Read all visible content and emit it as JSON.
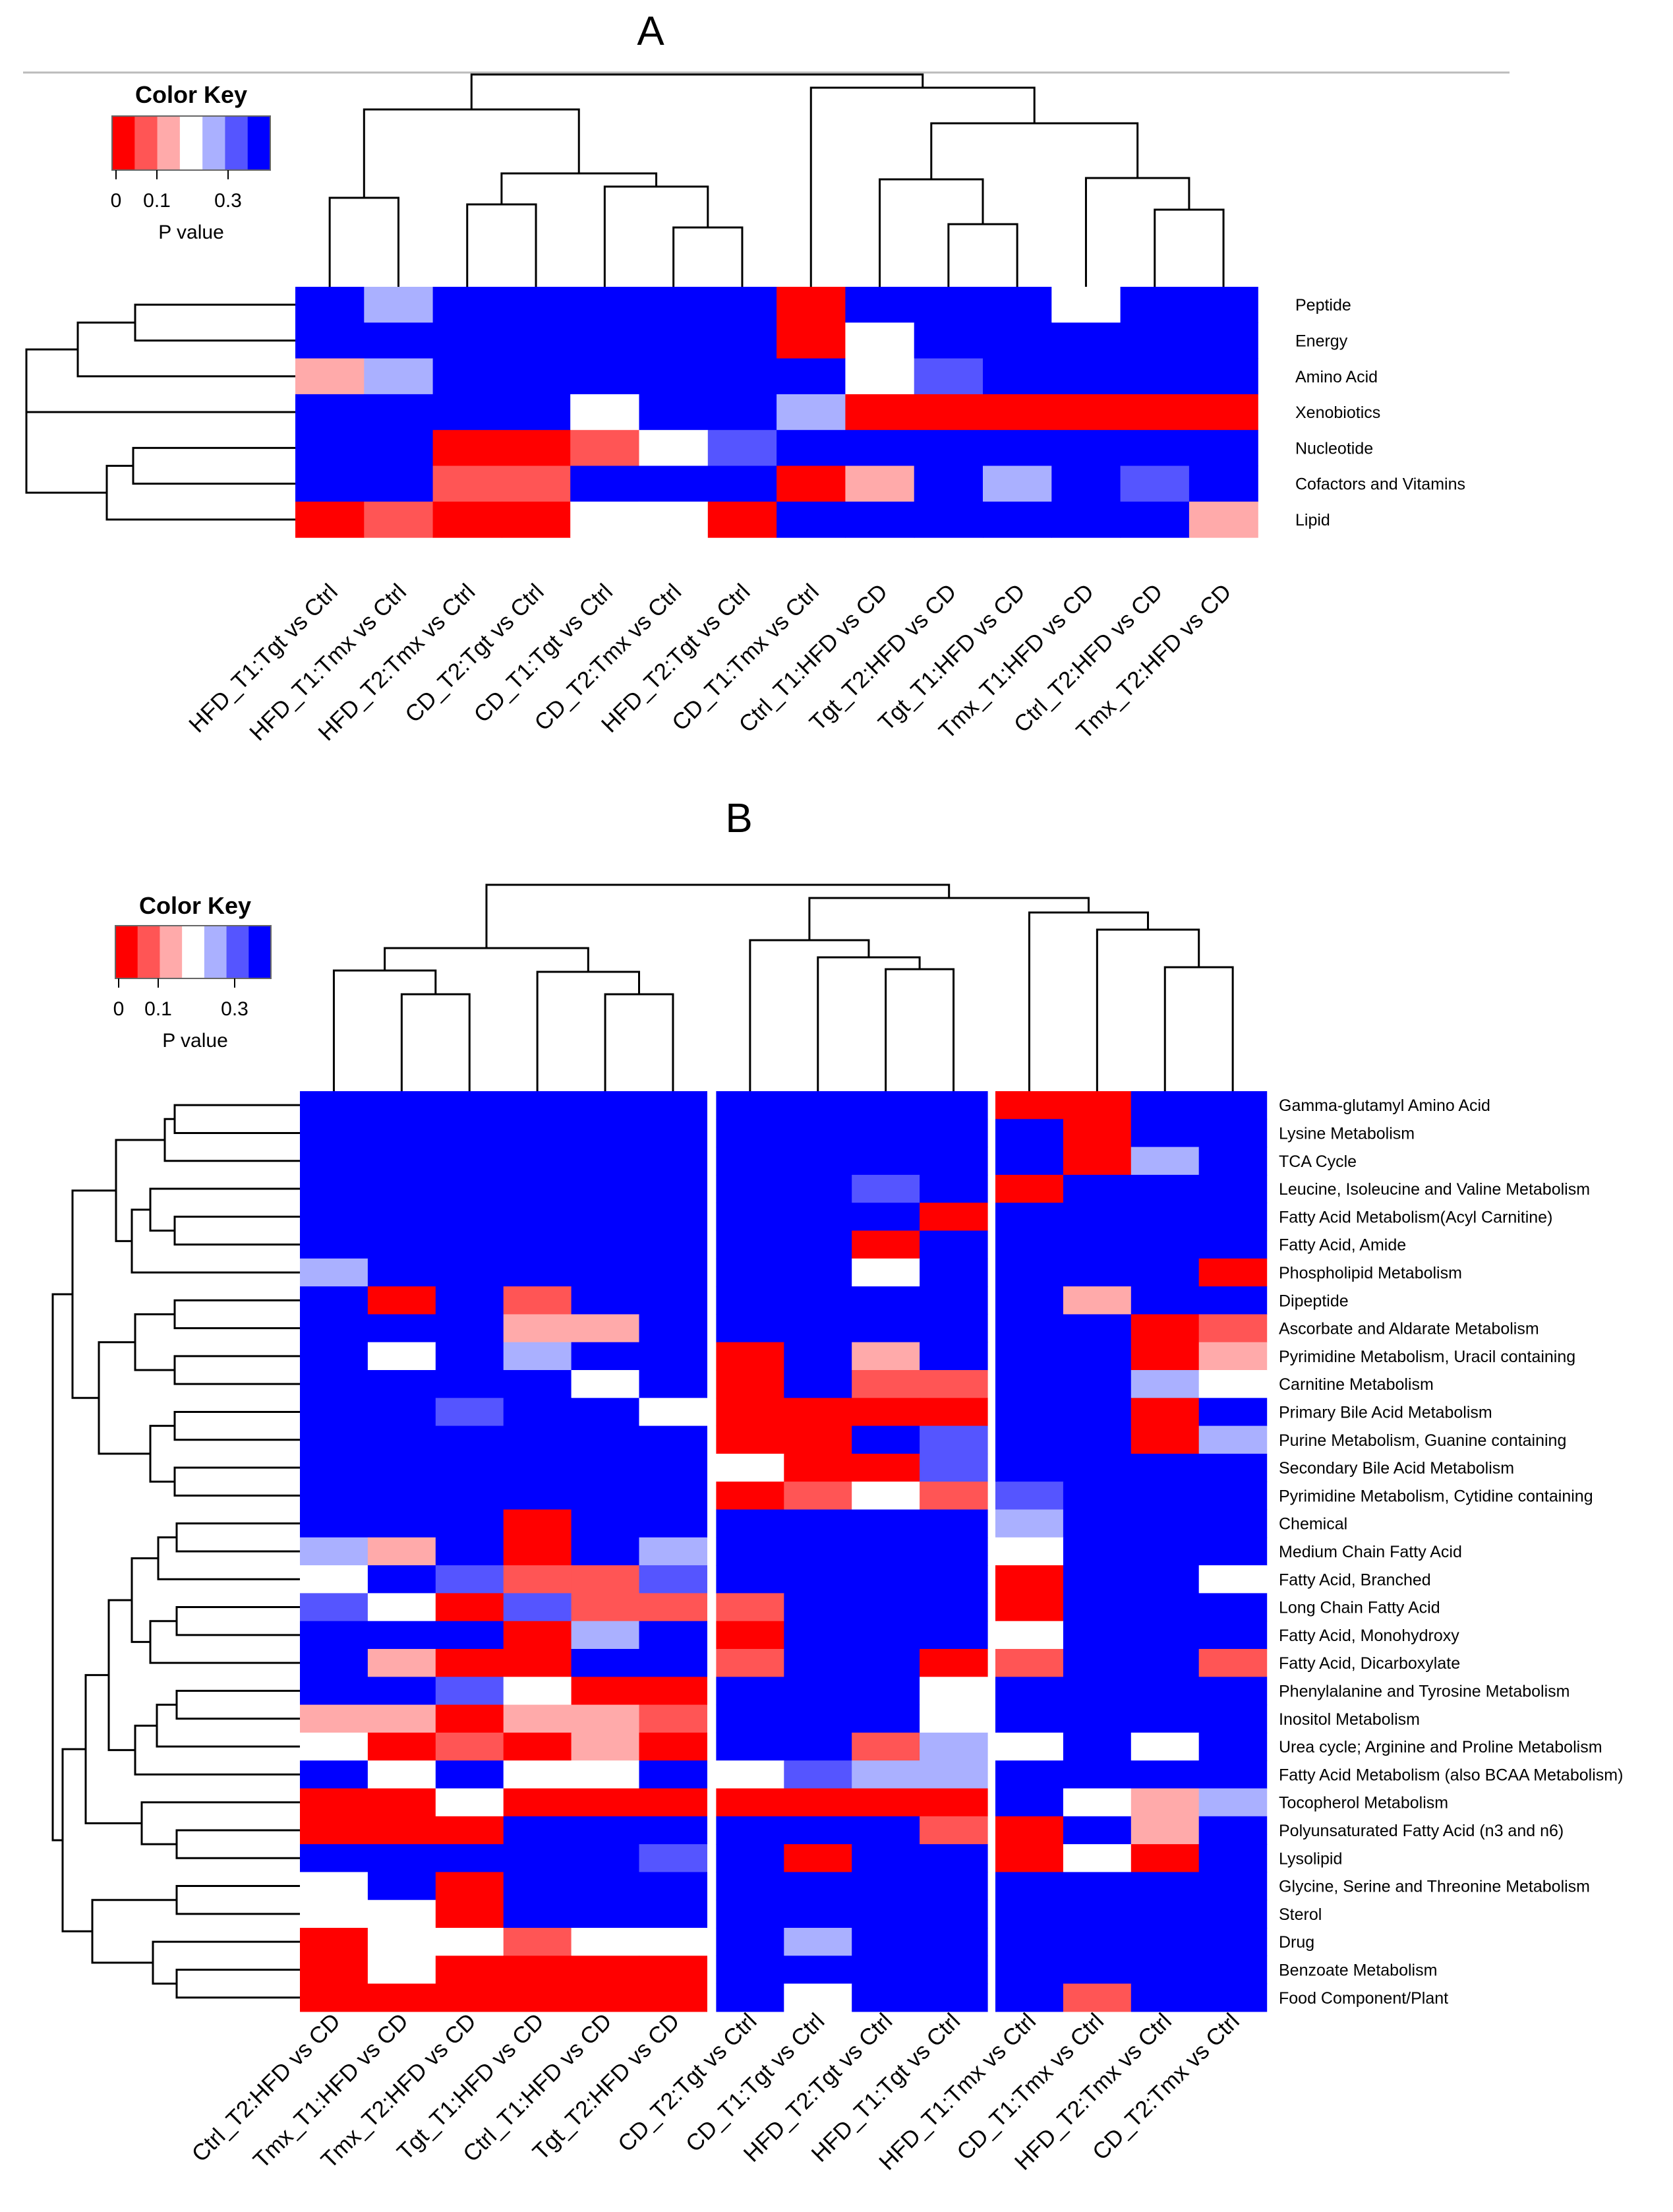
{
  "colors": {
    "r": "#ff0000",
    "m": "#ff5555",
    "p": "#ffaaaa",
    "w": "#ffffff",
    "l": "#aab0ff",
    "k": "#5555ff",
    "b": "#0000ff"
  },
  "chart_data": [
    {
      "panel": "A",
      "type": "heatmap",
      "title": "A",
      "color_key": {
        "title": "Color Key",
        "label": "P value",
        "ticks": [
          "0",
          "0.1",
          "0.3"
        ],
        "scale": [
          "#ff0000",
          "#ff5555",
          "#ffaaaa",
          "#ffffff",
          "#aab0ff",
          "#5555ff",
          "#0000ff"
        ]
      },
      "rows": [
        "Peptide",
        "Energy",
        "Amino Acid",
        "Xenobiotics",
        "Nucleotide",
        "Cofactors and Vitamins",
        "Lipid"
      ],
      "columns": [
        "HFD_T1:Tgt vs Ctrl",
        "HFD_T1:Tmx vs Ctrl",
        "HFD_T2:Tmx vs Ctrl",
        "CD_T2:Tgt vs Ctrl",
        "CD_T1:Tgt vs Ctrl",
        "CD_T2:Tmx vs Ctrl",
        "HFD_T2:Tgt vs Ctrl",
        "CD_T1:Tmx vs Ctrl",
        "Ctrl_T1:HFD vs CD",
        "Tgt_T2:HFD vs CD",
        "Tgt_T1:HFD vs CD",
        "Tmx_T1:HFD vs CD",
        "Ctrl_T2:HFD vs CD",
        "Tmx_T2:HFD vs CD"
      ],
      "cells": [
        "blbbbbbrbbbwbb",
        "bbbbbbbrwbbbbb",
        "plbbbbbbwkbbbb",
        "bbbbwbblrrrrrr",
        "bbrrmwkbbbbbbb",
        "bbmmbbbrpblbkb",
        "rmrrwwrbbbbbbp"
      ]
    },
    {
      "panel": "B",
      "type": "heatmap",
      "title": "B",
      "color_key": {
        "title": "Color Key",
        "label": "P value",
        "ticks": [
          "0",
          "0.1",
          "0.3"
        ],
        "scale": [
          "#ff0000",
          "#ff5555",
          "#ffaaaa",
          "#ffffff",
          "#aab0ff",
          "#5555ff",
          "#0000ff"
        ]
      },
      "rows": [
        "Gamma-glutamyl Amino Acid",
        "Lysine Metabolism",
        "TCA Cycle",
        "Leucine, Isoleucine and Valine Metabolism",
        "Fatty Acid Metabolism(Acyl Carnitine)",
        "Fatty Acid, Amide",
        "Phospholipid Metabolism",
        "Dipeptide",
        "Ascorbate and Aldarate Metabolism",
        "Pyrimidine Metabolism, Uracil containing",
        "Carnitine Metabolism",
        "Primary Bile Acid Metabolism",
        "Purine Metabolism, Guanine containing",
        "Secondary Bile Acid Metabolism",
        "Pyrimidine Metabolism, Cytidine containing",
        "Chemical",
        "Medium Chain Fatty Acid",
        "Fatty Acid, Branched",
        "Long Chain Fatty Acid",
        "Fatty Acid, Monohydroxy",
        "Fatty Acid, Dicarboxylate",
        "Phenylalanine and Tyrosine Metabolism",
        "Inositol Metabolism",
        "Urea cycle; Arginine and Proline Metabolism",
        "Fatty Acid Metabolism (also BCAA Metabolism)",
        "Tocopherol Metabolism",
        "Polyunsaturated Fatty Acid (n3 and n6)",
        "Lysolipid",
        "Glycine, Serine and Threonine Metabolism",
        "Sterol",
        "Drug",
        "Benzoate Metabolism",
        "Food Component/Plant"
      ],
      "columns": [
        "Ctrl_T2:HFD vs CD",
        "Tmx_T1:HFD vs CD",
        "Tmx_T2:HFD vs CD",
        "Tgt_T1:HFD vs CD",
        "Ctrl_T1:HFD vs CD",
        "Tgt_T2:HFD vs CD",
        "CD_T2:Tgt vs Ctrl",
        "CD_T1:Tgt vs Ctrl",
        "HFD_T2:Tgt vs Ctrl",
        "HFD_T1:Tgt vs Ctrl",
        "HFD_T1:Tmx vs Ctrl",
        "CD_T1:Tmx vs Ctrl",
        "HFD_T2:Tmx vs Ctrl",
        "CD_T2:Tmx vs Ctrl"
      ],
      "cells": [
        "bbbbbbbbbbrrbb",
        "bbbbbbbbbbbrbb",
        "bbbbbbbbbbbrlb",
        "bbbbbbbbkbrbbb",
        "bbbbbbbbbrbbbb",
        "bbbbbbbbrbbbbb",
        "lbbbbbbbwbbbbr",
        "brbmbbbbbbbpbb",
        "bbbppbbbbbbbrm",
        "bwblbbrbpbbbrp",
        "bbbbwbrbmmbblw",
        "bbkbbwrrrrbbrb",
        "bbbbbbrrbkbbrl",
        "bbbbbbwrrkbbbb",
        "bbbbbbrmwmkbbb",
        "bbbrbbbbbblbbb",
        "lpbrblbbbbwbbb",
        "wbkmmkbbbbrbbw",
        "kwrkmmmbbbrbbb",
        "bbbrlbrbbbwbbb",
        "bprrbbmbbrmbbm",
        "bbkwrrbbbwbbbb",
        "pprppmbbbwbbbb",
        "wrmrprbbmlwbwb",
        "bwbwwbwkllbbbb",
        "rrwrrrrrrrbwpl",
        "rrrbbbbbbmrbpb",
        "bbbbbkbrbbrwrb",
        "wbrbbbbbbbbbbb",
        "wwrbbbbbbbbbbb",
        "rwwmwwblbbbbbb",
        "rwrrrrbbbbbbbb",
        "rrrrrrbwbbbmbb"
      ]
    }
  ]
}
